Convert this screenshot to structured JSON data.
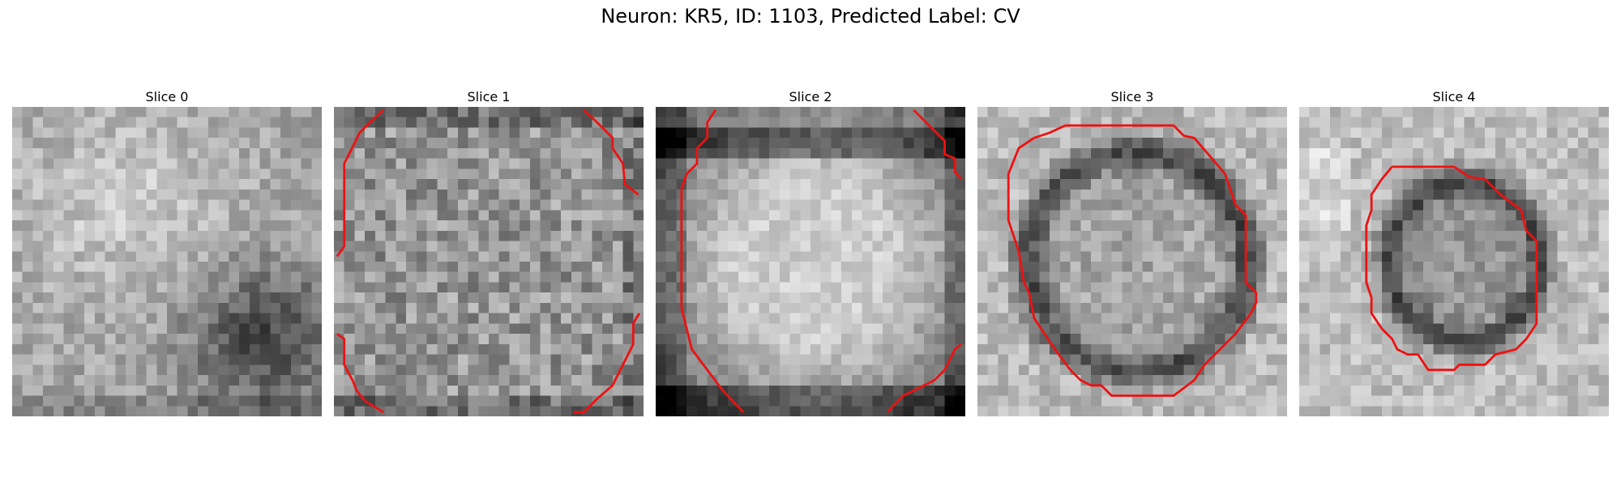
{
  "figure": {
    "title": "Neuron: KR5, ID: 1103, Predicted Label: CV"
  },
  "panels": [
    {
      "title": "Slice 0"
    },
    {
      "title": "Slice 1"
    },
    {
      "title": "Slice 2"
    },
    {
      "title": "Slice 3"
    },
    {
      "title": "Slice 4"
    }
  ],
  "colors": {
    "contour": "#ee1111",
    "background": "#ffffff"
  }
}
